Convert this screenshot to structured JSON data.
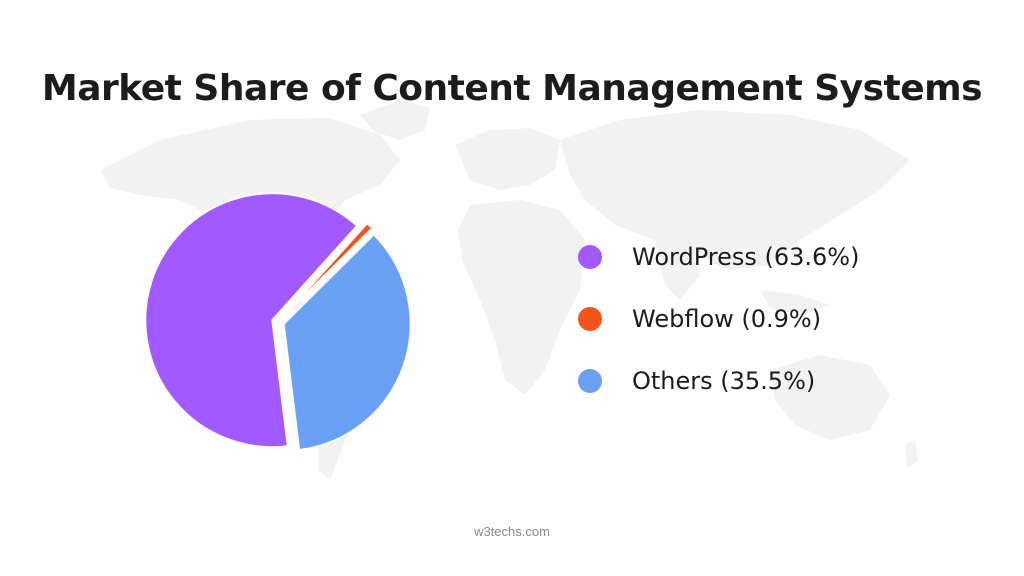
{
  "chart_data": {
    "type": "pie",
    "title": "Market Share of Content Management Systems",
    "slices": [
      {
        "label": "WordPress (63.6%)",
        "name": "WordPress",
        "value": 63.6,
        "color": "#a259ff"
      },
      {
        "label": "Webflow (0.9%)",
        "name": "Webflow",
        "value": 0.9,
        "color": "#f2541b"
      },
      {
        "label": "Others (35.5%)",
        "name": "Others",
        "value": 35.5,
        "color": "#6ba1f5"
      }
    ],
    "legend_position": "right",
    "source": "w3techs.com"
  },
  "colors": {
    "background_map": "#f1f1f1",
    "title_text": "#1c1c1c"
  }
}
